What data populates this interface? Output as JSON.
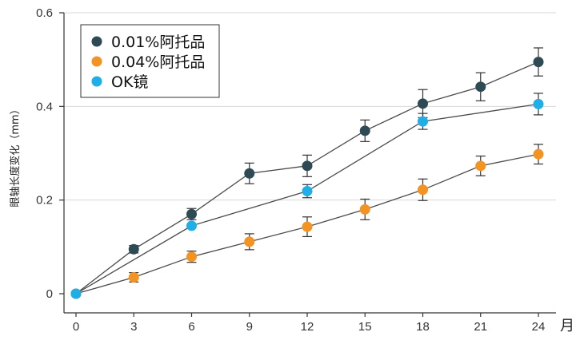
{
  "chart_data": {
    "type": "line",
    "title": "",
    "xlabel": "月",
    "ylabel": "眼轴长度变化（mm）",
    "x": [
      0,
      3,
      6,
      9,
      12,
      15,
      18,
      21,
      24
    ],
    "xlim": [
      0,
      24
    ],
    "ylim": [
      0,
      0.6
    ],
    "x_ticks": [
      "0",
      "3",
      "6",
      "9",
      "12",
      "15",
      "18",
      "21",
      "24"
    ],
    "y_ticks": [
      "0",
      "0.2",
      "0.4",
      "0.6"
    ],
    "y_tick_values": [
      0,
      0.2,
      0.4,
      0.6
    ],
    "grid": "horizontal",
    "legend_position": "top-left",
    "series": [
      {
        "name": "0.01%阿托品",
        "color": "#2d4a55",
        "x": [
          0,
          3,
          6,
          9,
          12,
          15,
          18,
          21,
          24
        ],
        "values": [
          0,
          0.095,
          0.17,
          0.257,
          0.273,
          0.348,
          0.406,
          0.442,
          0.495
        ],
        "err": [
          0,
          0.008,
          0.012,
          0.022,
          0.023,
          0.023,
          0.03,
          0.03,
          0.03
        ]
      },
      {
        "name": "0.04%阿托品",
        "color": "#f39321",
        "x": [
          0,
          3,
          6,
          9,
          12,
          15,
          18,
          21,
          24
        ],
        "values": [
          0,
          0.035,
          0.079,
          0.111,
          0.143,
          0.18,
          0.222,
          0.273,
          0.298
        ],
        "err": [
          0,
          0.01,
          0.012,
          0.017,
          0.021,
          0.022,
          0.023,
          0.021,
          0.021
        ]
      },
      {
        "name": "OK镜",
        "color": "#1eaee8",
        "x": [
          0,
          6,
          12,
          18,
          24
        ],
        "values": [
          0,
          0.145,
          0.219,
          0.368,
          0.405
        ],
        "err": [
          0,
          0,
          0.014,
          0.017,
          0.023
        ]
      }
    ]
  }
}
